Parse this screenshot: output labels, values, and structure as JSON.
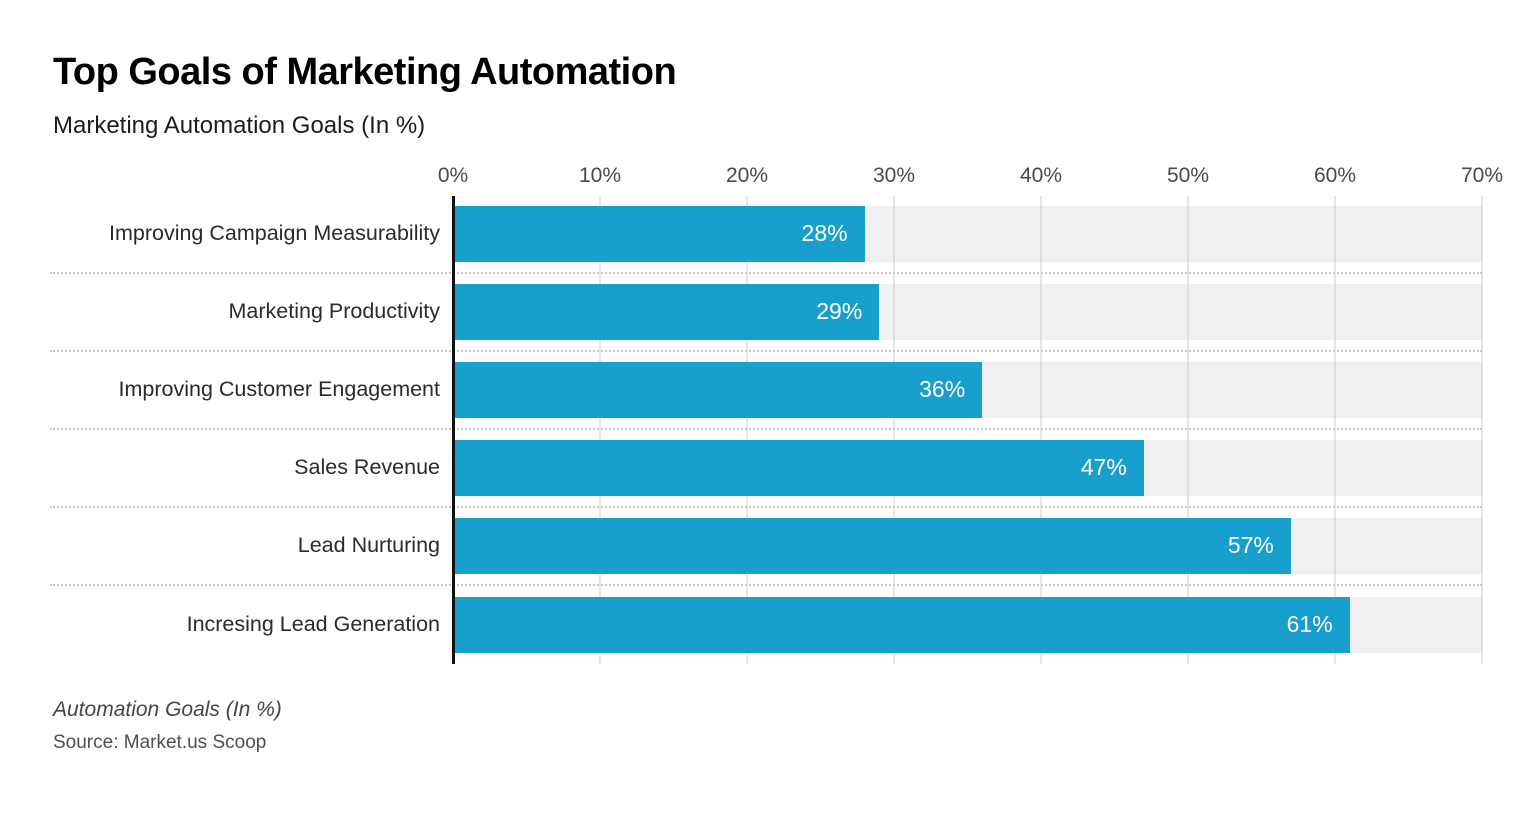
{
  "header": {
    "title": "Top Goals of Marketing Automation",
    "subtitle": "Marketing Automation Goals (In %)"
  },
  "footer": {
    "note": "Automation Goals (In %)",
    "source": "Source: Market.us Scoop"
  },
  "chart_data": {
    "type": "bar",
    "orientation": "horizontal",
    "title": "Top Goals of Marketing Automation",
    "subtitle": "Marketing Automation Goals (In %)",
    "categories": [
      "Improving Campaign Measurability",
      "Marketing Productivity",
      "Improving Customer Engagement",
      "Sales Revenue",
      "Lead Nurturing",
      "Incresing Lead Generation"
    ],
    "values": [
      28,
      29,
      36,
      47,
      57,
      61
    ],
    "value_labels": [
      "28%",
      "29%",
      "36%",
      "47%",
      "57%",
      "61%"
    ],
    "x_ticks": [
      "0%",
      "10%",
      "20%",
      "30%",
      "40%",
      "50%",
      "60%",
      "70%"
    ],
    "tick_step": 10,
    "xlim": [
      0,
      70
    ],
    "xlabel": "",
    "ylabel": "",
    "grid": "vertical",
    "legend": "none",
    "bar_color": "#199fcd",
    "track_color": "#f0f0f0",
    "value_label_color": "#ffffff",
    "axis_line_color": "#111111"
  }
}
